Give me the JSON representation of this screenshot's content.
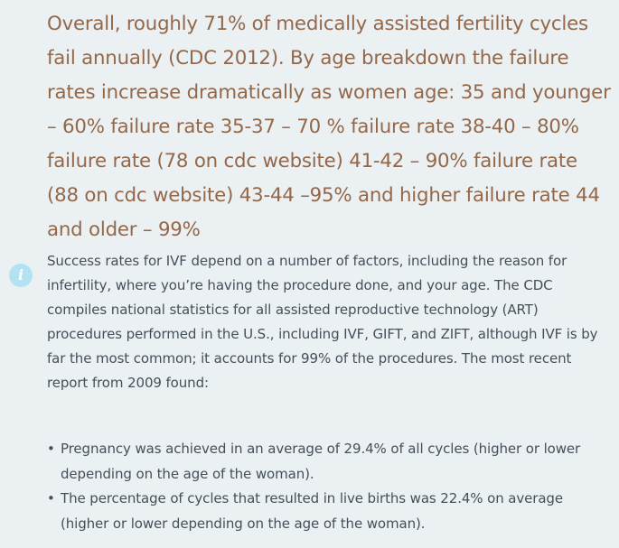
{
  "quote": {
    "text": "Overall, roughly 71% of medically assisted fertility cycles fail annually (CDC 2012). By age breakdown the failure rates increase dramatically as women age: 35 and younger – 60% failure rate 35-37 – 70 % failure rate 38-40 – 80% failure rate (78 on cdc website) 41-42 – 90% failure rate (88 on cdc website) 43-44 –95% and higher failure rate 44 and older – 99%"
  },
  "info": {
    "icon": "info-icon",
    "icon_glyph": "i",
    "text": "Success rates for IVF depend on a number of factors, including the reason for infertility, where you’re having the procedure done, and your age. The CDC compiles national statistics for all assisted reproductive technology (ART) procedures performed in the U.S., including IVF, GIFT, and ZIFT, although IVF is by far the most common; it accounts for 99% of the procedures. The most recent report from 2009 found:"
  },
  "bullets": [
    {
      "marker": "•",
      "text": "Pregnancy was achieved in an average of 29.4% of all cycles (higher or lower depending on the age of the woman)."
    },
    {
      "marker": "•",
      "text": "The percentage of cycles that resulted in live births was 22.4% on average (higher or lower depending on the age of the woman)."
    }
  ],
  "colors": {
    "background": "#ebf0f2",
    "quote_text": "#93684a",
    "body_text": "#43505a",
    "info_icon_bg": "#b3e2f3"
  }
}
